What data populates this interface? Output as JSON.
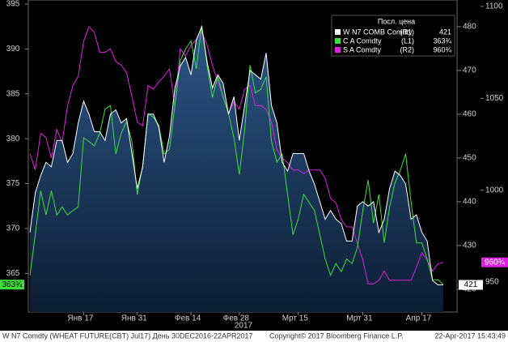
{
  "chart_data": {
    "type": "line",
    "legend_title": "Посл. цена",
    "xlim": [
      0,
      77
    ],
    "xticks": [
      {
        "value": 10,
        "label": "Янв 17"
      },
      {
        "value": 20,
        "label": "Янв 31"
      },
      {
        "value": 30,
        "label": "Фев 14"
      },
      {
        "value": 39,
        "label": "Фев 28"
      },
      {
        "value": 50,
        "label": "Мрт 15"
      },
      {
        "value": 62,
        "label": "Мрт 31"
      },
      {
        "value": 73,
        "label": "Апр 17"
      }
    ],
    "year_label": "2017",
    "ylim": [
      360.7,
      395.45
    ],
    "yticks": [
      365,
      370,
      375,
      380,
      385,
      390,
      395
    ],
    "y2lim": [
      414.8,
      486.1
    ],
    "y2ticks": [
      420,
      430,
      440,
      450,
      460,
      470,
      480
    ],
    "y3lim": [
      933.7,
      1103.5
    ],
    "y3ticks": [
      950,
      1000,
      1050,
      1100
    ],
    "series": [
      {
        "name": "W N7 COMB Comdty",
        "axis_label": "(R1)",
        "axis": "y2",
        "color": "#ffffff",
        "last_label": "421",
        "values": [
          433,
          442,
          446,
          449,
          448,
          454,
          454,
          449,
          451,
          458,
          463,
          460,
          456,
          456,
          454,
          460,
          461,
          458,
          459,
          451,
          443,
          448,
          460,
          460,
          457,
          449,
          455,
          466,
          471,
          473,
          469,
          477,
          480,
          472,
          466,
          469,
          467,
          460,
          464,
          454,
          462,
          470,
          469,
          468,
          474,
          462,
          458,
          449,
          447,
          451,
          451,
          451,
          447,
          444,
          440,
          436,
          438,
          436,
          435,
          431,
          431,
          439,
          440,
          439,
          440,
          433,
          436,
          443,
          447,
          446,
          444,
          436,
          437,
          433,
          431,
          422,
          421,
          421
        ]
      },
      {
        "name": "C A Comdty",
        "axis_label": "(L1)",
        "axis": "y",
        "color": "#3ee03e",
        "last_label": "363¾",
        "values": [
          364.8,
          369.3,
          374.2,
          371.5,
          374.2,
          371.5,
          372.4,
          371.5,
          372,
          372.4,
          380.1,
          379.7,
          379.2,
          380.6,
          383.3,
          383.7,
          378.3,
          380.6,
          381.9,
          379.7,
          373.8,
          377,
          382.8,
          382.4,
          381.5,
          378.3,
          378.8,
          383.7,
          388.7,
          390,
          390.9,
          387.8,
          392.6,
          388.2,
          384.6,
          386.9,
          384.6,
          382.8,
          380.1,
          376,
          381,
          388.2,
          385.1,
          385.5,
          386.9,
          379.7,
          377.4,
          378.3,
          373.8,
          369.3,
          371.1,
          373.8,
          372.9,
          372,
          369.3,
          366.6,
          364.8,
          366.1,
          365.2,
          366.6,
          366.1,
          367.9,
          372,
          375.4,
          370.6,
          373.8,
          368.4,
          372.4,
          375.1,
          376.5,
          378.3,
          372.9,
          368.4,
          368.4,
          366.6,
          364.3,
          364.3,
          363.75
        ]
      },
      {
        "name": "S A Comdty",
        "axis_label": "(R2)",
        "axis": "y3",
        "color": "#e020e0",
        "last_label": "960¾",
        "values": [
          1020,
          1011,
          1031,
          1028.5,
          1017.5,
          1033,
          1026,
          1046,
          1057,
          1062,
          1081,
          1089,
          1086,
          1075,
          1075,
          1077,
          1070,
          1068,
          1064,
          1051,
          1037,
          1035,
          1057,
          1055,
          1059,
          1062,
          1066,
          1046,
          1077,
          1073,
          1079,
          1082,
          1086,
          1079,
          1068,
          1059,
          1051,
          1042,
          1048,
          1044,
          1055,
          1057,
          1046,
          1046,
          1044,
          1037,
          1022,
          1017.5,
          1015,
          1011,
          1011,
          1009,
          1011,
          1011,
          1011,
          1006.5,
          995.5,
          993,
          984,
          980,
          980,
          971,
          962,
          949,
          949,
          951,
          956,
          951,
          951,
          951,
          951,
          951,
          958,
          966,
          962,
          956,
          960,
          960.75
        ]
      }
    ],
    "footer": {
      "left": "W N7 Comdty (WHEAT FUTURE(CBT) Jul17) День 30DEC2016-22APR2017",
      "center": "Copyright© 2017 Bloomberg Finance L.P.",
      "right": "22-Apr-2017 15:43:49"
    }
  }
}
